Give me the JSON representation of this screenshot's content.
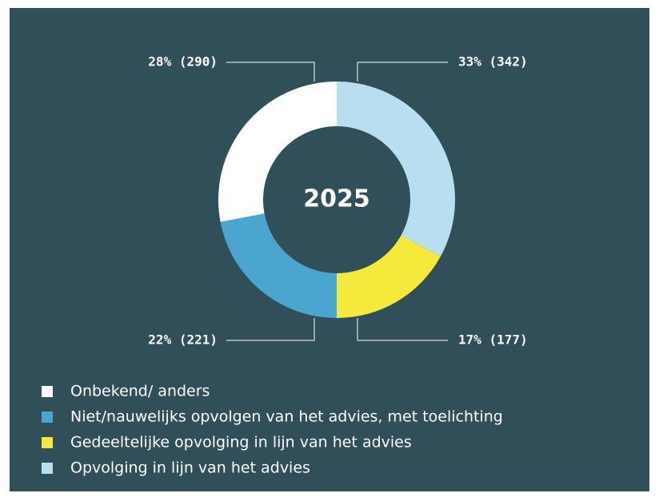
{
  "chart_data": {
    "type": "donut",
    "title": "2025",
    "categories": [
      "Onbekend/ anders",
      "Niet/nauwelijks opvolgen van het advies, met toelichting",
      "Gedeeltelijke opvolging in lijn van het advies",
      "Opvolging in lijn van het advies"
    ],
    "values": [
      28,
      22,
      17,
      33
    ],
    "value_labels": [
      "28% (290)",
      "22% (221)",
      "17% (177)",
      "33% (342)"
    ],
    "colors": [
      "#ffffff",
      "#4aa5cf",
      "#f5ea3b",
      "#b8def0"
    ]
  }
}
